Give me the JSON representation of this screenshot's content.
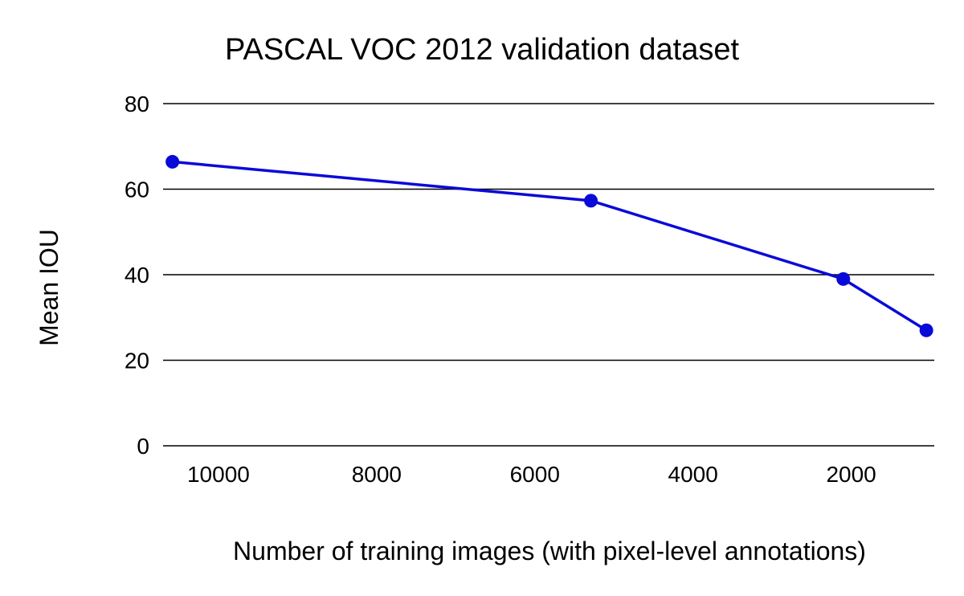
{
  "chart_data": {
    "type": "line",
    "title": "PASCAL VOC 2012 validation dataset",
    "xlabel": "Number of training images (with pixel-level annotations)",
    "ylabel": "Mean IOU",
    "x_reversed": true,
    "xlim": [
      950,
      10700
    ],
    "ylim": [
      0,
      80
    ],
    "x_ticks": [
      10000,
      8000,
      6000,
      4000,
      2000
    ],
    "y_ticks": [
      0,
      20,
      40,
      60,
      80
    ],
    "grid": "horizontal",
    "legend": "none",
    "series": [
      {
        "color": "#0a0ad8",
        "points": [
          {
            "x": 10582,
            "y": 66.4
          },
          {
            "x": 5291,
            "y": 57.3
          },
          {
            "x": 2100,
            "y": 39.0
          },
          {
            "x": 1050,
            "y": 27.0
          }
        ]
      }
    ]
  }
}
